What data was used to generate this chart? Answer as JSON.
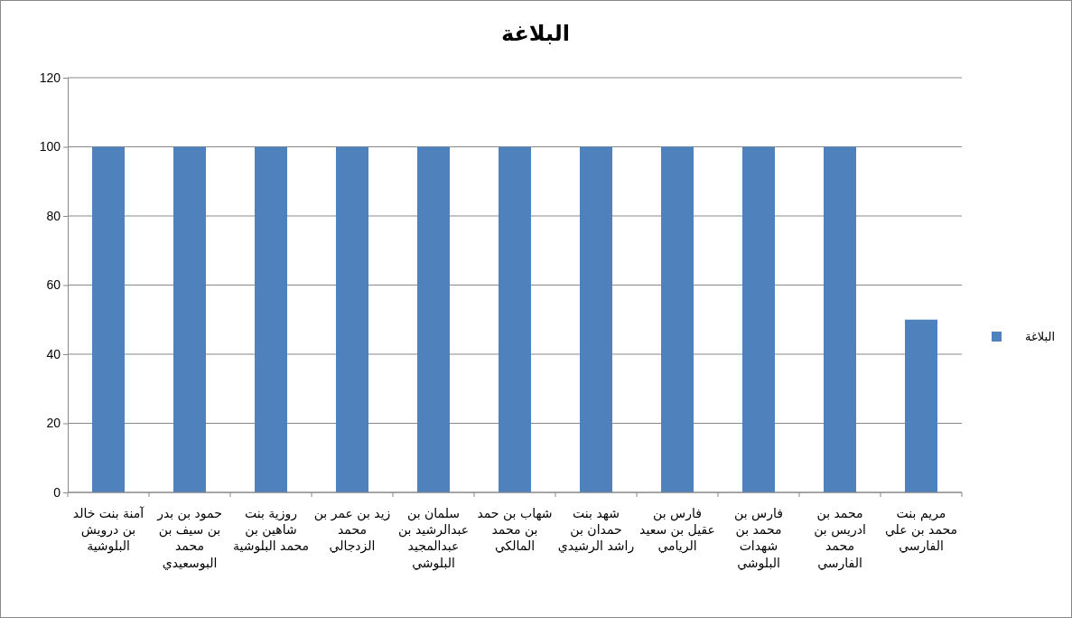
{
  "chart_data": {
    "type": "bar",
    "title": "البلاغة",
    "categories": [
      "آمنة بنت خالد بن درويش البلوشية",
      "حمود بن بدر بن سيف بن محمد البوسعيدي",
      "روزية بنت شاهين بن محمد البلوشية",
      "زيد بن عمر بن محمد الزدجالي",
      "سلمان بن عبدالرشيد بن عبدالمجيد البلوشي",
      "شهاب بن حمد بن محمد المالكي",
      "شهد بنت حمدان بن راشد الرشيدي",
      "فارس بن عقيل بن سعيد الريامي",
      "فارس بن محمد بن شهدات البلوشي",
      "محمد بن ادريس بن محمد الفارسي",
      "مريم بنت محمد بن علي الفارسي"
    ],
    "series": [
      {
        "name": "البلاغة",
        "color": "#4f81bd",
        "values": [
          100,
          100,
          100,
          100,
          100,
          100,
          100,
          100,
          100,
          100,
          50
        ]
      }
    ],
    "ylim": [
      0,
      120
    ],
    "yticks": [
      0,
      20,
      40,
      60,
      80,
      100,
      120
    ],
    "grid": "y",
    "legend": "right"
  }
}
